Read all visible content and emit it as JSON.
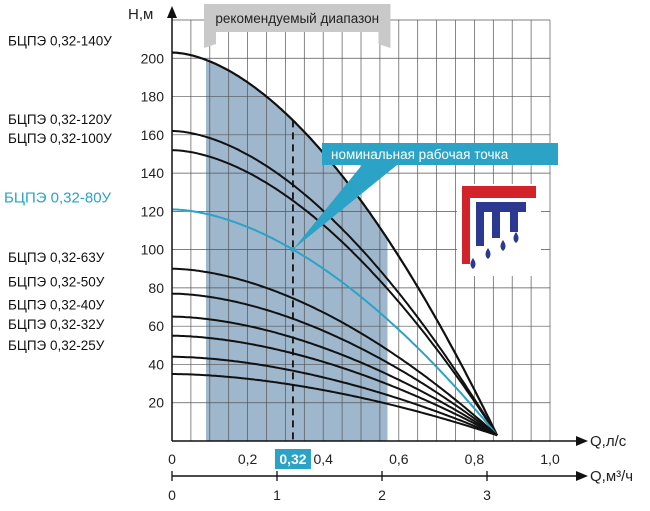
{
  "chart_data": {
    "type": "line",
    "title": "",
    "xlabel": "Q,л/с",
    "x2label": "Q,м³/ч",
    "ylabel": "H,м",
    "xlim": [
      0,
      1.0
    ],
    "ylim": [
      0,
      220
    ],
    "x_ticks": [
      "0",
      "0,2",
      "0,4",
      "0,6",
      "0,8",
      "1,0"
    ],
    "x_ticks_values": [
      0,
      0.2,
      0.4,
      0.6,
      0.8,
      1.0
    ],
    "x2_ticks": [
      "0",
      "1",
      "2",
      "3"
    ],
    "x2_ticks_values": [
      0,
      1,
      2,
      3
    ],
    "y_ticks": [
      "20",
      "40",
      "60",
      "80",
      "100",
      "120",
      "140",
      "160",
      "180",
      "200"
    ],
    "y_ticks_values": [
      20,
      40,
      60,
      80,
      100,
      120,
      140,
      160,
      180,
      200
    ],
    "grid": true,
    "recommended_range": {
      "label": "рекомендуемый диапазон",
      "q_from": 0.09,
      "q_to": 0.57
    },
    "nominal_point": {
      "label": "номинальная рабочая точка",
      "q": 0.32,
      "q_label": "0,32"
    },
    "convergence_point": {
      "q": 0.86,
      "h": 3
    },
    "series": [
      {
        "name": "БЦПЭ 0,32-140У",
        "h0": 203,
        "highlight": false
      },
      {
        "name": "БЦПЭ 0,32-120У",
        "h0": 162,
        "highlight": false
      },
      {
        "name": "БЦПЭ 0,32-100У",
        "h0": 152,
        "highlight": false
      },
      {
        "name": "БЦПЭ 0,32-80У",
        "h0": 121,
        "highlight": true
      },
      {
        "name": "БЦПЭ 0,32-63У",
        "h0": 90,
        "highlight": false
      },
      {
        "name": "БЦПЭ 0,32-50У",
        "h0": 77,
        "highlight": false
      },
      {
        "name": "БЦПЭ 0,32-40У",
        "h0": 65,
        "highlight": false
      },
      {
        "name": "БЦПЭ 0,32-32У",
        "h0": 55,
        "highlight": false
      },
      {
        "name": "БЦПЭ 0,32-25У",
        "h0": 44,
        "highlight": false
      },
      {
        "name": "",
        "h0": 35,
        "highlight": false
      }
    ]
  },
  "colors": {
    "band": "#9fb7cc",
    "curve": "#111111",
    "highlight": "#2aa3c6",
    "callout": "#2aa3c6",
    "grid": "#555555",
    "logo_red": "#d2232a",
    "logo_blue": "#2b3990"
  },
  "logo": {
    "icon": "company-logo-icon"
  }
}
